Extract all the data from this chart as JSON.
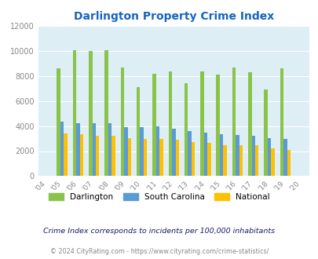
{
  "title": "Darlington Property Crime Index",
  "years": [
    2004,
    2005,
    2006,
    2007,
    2008,
    2009,
    2010,
    2011,
    2012,
    2013,
    2014,
    2015,
    2016,
    2017,
    2018,
    2019,
    2020
  ],
  "darlington": [
    null,
    8600,
    10050,
    10000,
    10050,
    8700,
    7100,
    8150,
    8350,
    7450,
    8350,
    8100,
    8650,
    8300,
    6950,
    8600,
    null
  ],
  "south_carolina": [
    null,
    4350,
    4250,
    4250,
    4250,
    3900,
    3900,
    4000,
    3800,
    3620,
    3500,
    3350,
    3300,
    3200,
    3050,
    2950,
    null
  ],
  "national": [
    null,
    3400,
    3320,
    3250,
    3250,
    3050,
    2950,
    2950,
    2900,
    2700,
    2650,
    2500,
    2500,
    2500,
    2200,
    2100,
    null
  ],
  "darlington_color": "#8bc34a",
  "sc_color": "#5b9bd5",
  "national_color": "#ffc000",
  "bg_color": "#ddeef5",
  "title_color": "#1565c0",
  "ylim": [
    0,
    12000
  ],
  "yticks": [
    0,
    2000,
    4000,
    6000,
    8000,
    10000,
    12000
  ],
  "footnote1": "Crime Index corresponds to incidents per 100,000 inhabitants",
  "footnote2": "© 2024 CityRating.com - https://www.cityrating.com/crime-statistics/",
  "bar_width": 0.22,
  "grid_color": "#ffffff"
}
